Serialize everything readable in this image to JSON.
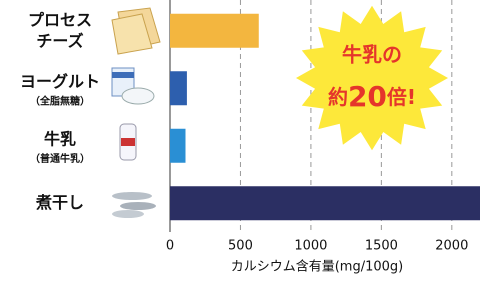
{
  "chart_data": {
    "type": "barh",
    "categories": [
      [
        "プロセス",
        "チーズ"
      ],
      [
        "ヨーグルト",
        "（全脂無糖）"
      ],
      [
        "牛乳",
        "（普通牛乳）"
      ],
      [
        "煮干し"
      ]
    ],
    "values": [
      630,
      120,
      110,
      2200
    ],
    "colors": [
      "#f3b63f",
      "#2d5fae",
      "#2a8fd4",
      "#2b2f63"
    ],
    "xlim": [
      0,
      2200
    ],
    "xticks": [
      0,
      500,
      1000,
      1500,
      2000
    ],
    "grid": true,
    "xlabel": "カルシウム含有量(mg/100g)",
    "annotation": [
      "牛乳の",
      "約",
      "20",
      "倍!"
    ]
  }
}
